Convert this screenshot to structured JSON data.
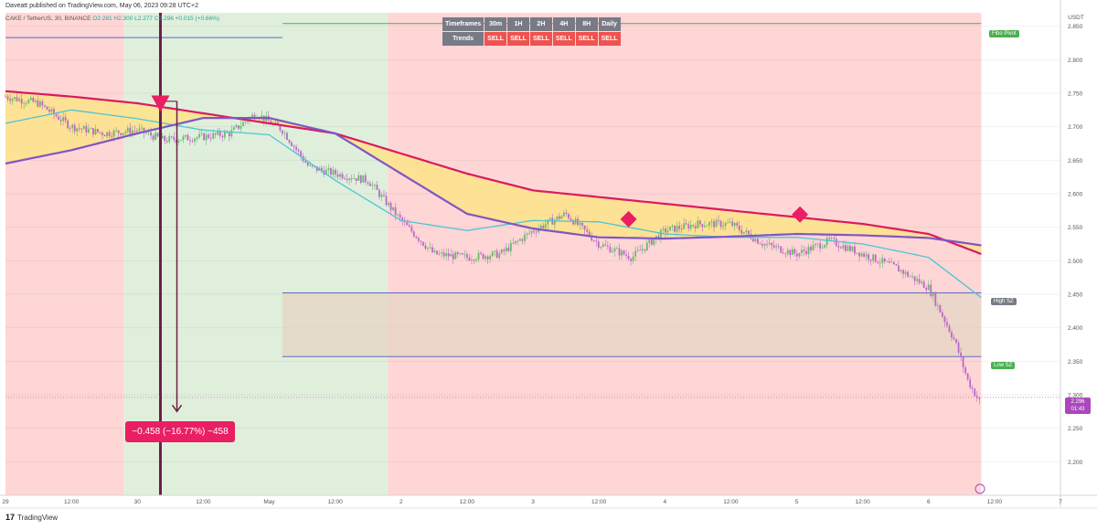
{
  "header": {
    "publisher": "Daveatt published on TradingView.com, May 06, 2023 09:28 UTC+2"
  },
  "legend": {
    "symbol": "CAKE / TetherUS, 30, BINANCE",
    "ohlc": "O2.281  H2.300  L2.277  C2.296  +0.015 (+0.66%)"
  },
  "trend_table": {
    "row1": [
      "Timeframes",
      "30m",
      "1H",
      "2H",
      "4H",
      "8H",
      "Daily"
    ],
    "row2": [
      "Trends",
      "SELL",
      "SELL",
      "SELL",
      "SELL",
      "SELL",
      "SELL"
    ]
  },
  "measure": {
    "label": "−0.458 (−16.77%) −458"
  },
  "tags": {
    "fibo": "Fibo Pivot",
    "high_sz": "High SZ",
    "low_sz": "Low SZ",
    "price": "2.296",
    "countdown": "01:43"
  },
  "brand": {
    "name": "TradingView"
  },
  "colors": {
    "red_bg": "#ffd6d6",
    "green_bg": "#e0efdc",
    "zone": "#e6d4c4",
    "ma_red": "#d81b60",
    "ma_purple": "#7e57c2",
    "ma_cyan": "#4dc5d6",
    "fill_yellow": "#fde38a",
    "candle_up": "#66bb6a",
    "candle_down": "#ba68c8",
    "marker": "#e91e63",
    "arrow": "#6d1e48"
  },
  "chart_data": {
    "type": "line",
    "ylabel": "USDT",
    "ylim": [
      2.15,
      2.87
    ],
    "x_ticks": [
      "29",
      "12:00",
      "30",
      "12:00",
      "May",
      "12:00",
      "2",
      "12:00",
      "3",
      "12:00",
      "4",
      "12:00",
      "5",
      "12:00",
      "6",
      "12:00",
      "7"
    ],
    "y_ticks": [
      2.2,
      2.25,
      2.3,
      2.35,
      2.4,
      2.45,
      2.5,
      2.55,
      2.6,
      2.65,
      2.7,
      2.75,
      2.8,
      2.85
    ],
    "y_tick_labels": [
      "2.200",
      "2.250",
      "2.300",
      "2.350",
      "2.400",
      "2.450",
      "2.500",
      "2.550",
      "2.600",
      "2.650",
      "2.700",
      "2.750",
      "2.800",
      "2.850"
    ],
    "x_domain": [
      0,
      16
    ],
    "background_periods": [
      {
        "from": 0,
        "to": 1.8,
        "trend": "bearish"
      },
      {
        "from": 1.8,
        "to": 5.8,
        "trend": "bullish"
      },
      {
        "from": 5.8,
        "to": 14.8,
        "trend": "bearish"
      }
    ],
    "supply_zone": {
      "from": 4.2,
      "to": 14.8,
      "high": 2.452,
      "low": 2.357
    },
    "fibo_pivot": {
      "from": 4.2,
      "to": 14.8,
      "value": 2.854
    },
    "left_line": {
      "from": 0,
      "to": 4.2,
      "value": 2.833
    },
    "series": [
      {
        "name": "ma_red",
        "x": [
          0,
          1,
          2,
          3,
          4,
          5,
          6,
          7,
          8,
          9,
          10,
          11,
          12,
          13,
          14,
          14.8
        ],
        "y": [
          2.753,
          2.745,
          2.735,
          2.72,
          2.705,
          2.69,
          2.66,
          2.63,
          2.605,
          2.595,
          2.585,
          2.575,
          2.565,
          2.555,
          2.54,
          2.51
        ]
      },
      {
        "name": "ma_purple",
        "x": [
          0,
          1,
          2,
          3,
          4,
          5,
          6,
          7,
          8,
          9,
          10,
          11,
          12,
          13,
          14,
          14.8
        ],
        "y": [
          2.645,
          2.665,
          2.69,
          2.713,
          2.713,
          2.69,
          2.63,
          2.57,
          2.548,
          2.535,
          2.533,
          2.536,
          2.54,
          2.538,
          2.534,
          2.523
        ]
      },
      {
        "name": "ma_cyan",
        "x": [
          0,
          1,
          2,
          3,
          4,
          5,
          6,
          7,
          8,
          9,
          10,
          11,
          12,
          13,
          14,
          14.8
        ],
        "y": [
          2.705,
          2.725,
          2.712,
          2.695,
          2.688,
          2.62,
          2.56,
          2.545,
          2.56,
          2.558,
          2.54,
          2.535,
          2.535,
          2.525,
          2.505,
          2.445
        ]
      },
      {
        "name": "price",
        "x": [
          0,
          0.5,
          1,
          1.5,
          2,
          2.4,
          3,
          3.4,
          3.8,
          4.2,
          4.6,
          5,
          5.5,
          6,
          6.5,
          7,
          7.5,
          8,
          8.5,
          9,
          9.5,
          10,
          10.5,
          11,
          11.5,
          12,
          12.5,
          13,
          13.5,
          14,
          14.2,
          14.4,
          14.6,
          14.8
        ],
        "y": [
          2.745,
          2.735,
          2.7,
          2.69,
          2.695,
          2.68,
          2.685,
          2.69,
          2.72,
          2.695,
          2.64,
          2.63,
          2.62,
          2.56,
          2.51,
          2.505,
          2.51,
          2.545,
          2.57,
          2.525,
          2.505,
          2.545,
          2.555,
          2.555,
          2.525,
          2.51,
          2.53,
          2.51,
          2.49,
          2.46,
          2.42,
          2.38,
          2.32,
          2.285
        ]
      }
    ],
    "markers": [
      {
        "type": "triangle-down",
        "x": 2.35,
        "y": 2.733
      },
      {
        "type": "diamond",
        "x": 9.45,
        "y": 2.562
      },
      {
        "type": "diamond",
        "x": 12.05,
        "y": 2.569
      }
    ],
    "measure": {
      "x0": 2.35,
      "x1": 2.6,
      "y0": 2.738,
      "y1": 2.275,
      "change": -0.458,
      "percent": -16.77
    }
  }
}
